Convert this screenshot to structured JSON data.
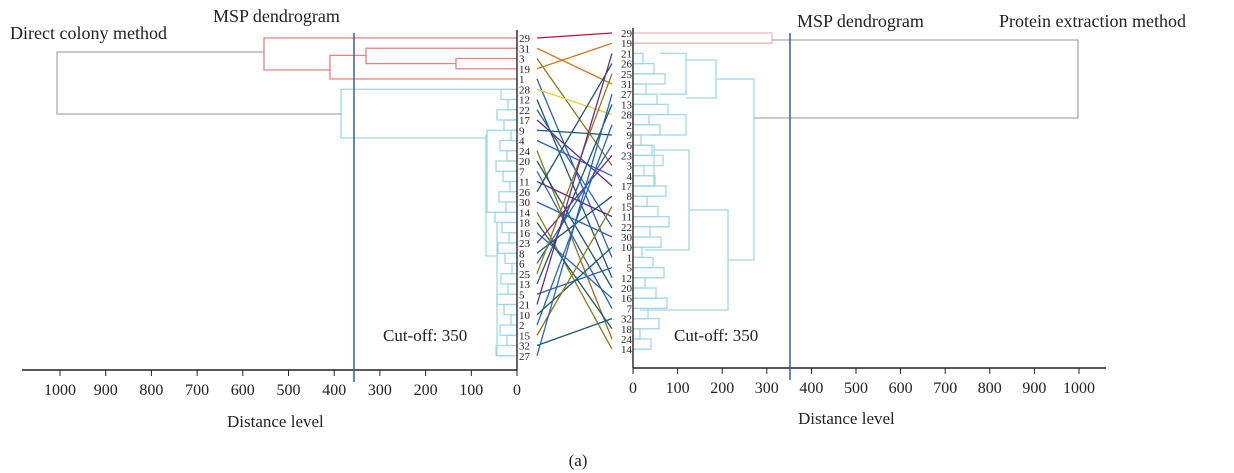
{
  "caption": "(a)",
  "left_panel": {
    "method_title": "Direct colony method",
    "dendrogram_title": "MSP dendrogram",
    "cutoff_label": "Cut-off: 350",
    "cutoff_value": 350,
    "axis_label": "Distance level",
    "axis_ticks": [
      "1000",
      "900",
      "800",
      "700",
      "600",
      "500",
      "400",
      "300",
      "200",
      "100",
      "0"
    ],
    "leaf_order": [
      "29",
      "31",
      "3",
      "19",
      "1",
      "28",
      "12",
      "22",
      "17",
      "9",
      "4",
      "24",
      "20",
      "7",
      "11",
      "26",
      "30",
      "14",
      "18",
      "16",
      "23",
      "8",
      "6",
      "25",
      "13",
      "5",
      "21",
      "10",
      "2",
      "15",
      "32",
      "27"
    ]
  },
  "right_panel": {
    "method_title": "Protein extraction method",
    "dendrogram_title": "MSP dendrogram",
    "cutoff_label": "Cut-off: 350",
    "cutoff_value": 350,
    "axis_label": "Distance level",
    "axis_ticks": [
      "0",
      "100",
      "200",
      "300",
      "400",
      "500",
      "600",
      "700",
      "800",
      "900",
      "1000"
    ],
    "leaf_order": [
      "29",
      "19",
      "21",
      "26",
      "25",
      "31",
      "27",
      "13",
      "28",
      "2",
      "9",
      "6",
      "23",
      "3",
      "4",
      "17",
      "8",
      "15",
      "11",
      "22",
      "30",
      "10",
      "1",
      "5",
      "12",
      "20",
      "16",
      "7",
      "32",
      "18",
      "24",
      "14"
    ]
  },
  "colors": {
    "cluster_red": "#e8807e",
    "cluster_pink": "#f2b8b6",
    "cluster_cyan": "#9fd8e6",
    "root_gray": "#aaaaaa",
    "cutoff_blue": "#2d63a8",
    "conn_red": "#c8113a",
    "conn_orange": "#d07a1c",
    "conn_olive": "#8a7a16",
    "conn_yellow": "#e2cf3c",
    "conn_teal": "#1c5a6a",
    "conn_blue": "#2a63b8",
    "conn_purple": "#6a2a8e"
  }
}
